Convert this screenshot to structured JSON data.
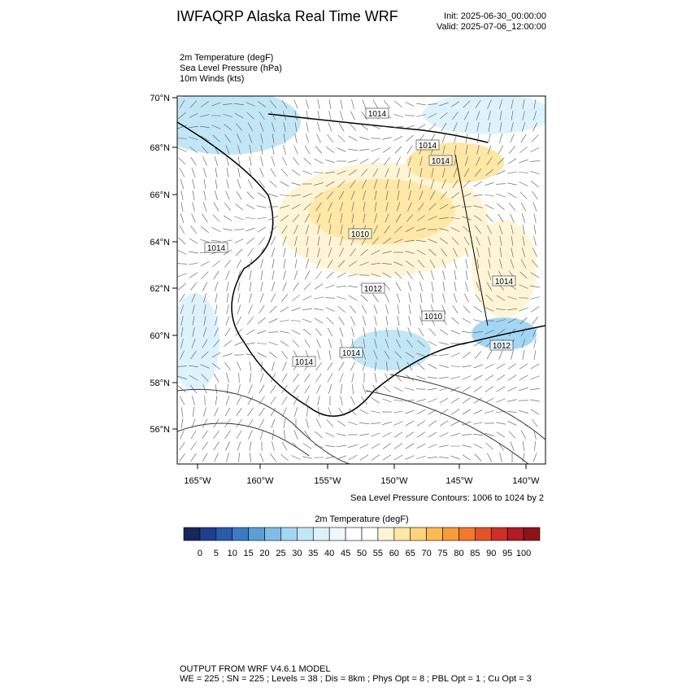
{
  "header": {
    "title": "IWFAQRP Alaska Real Time WRF",
    "init": "Init: 2025-06-30_00:00:00",
    "valid": "Valid: 2025-07-06_12:00:00"
  },
  "fields": [
    "2m Temperature   (degF)",
    "Sea Level Pressure   (hPa)",
    "10m Winds   (kts)"
  ],
  "map": {
    "lat_ticks": [
      "70°N",
      "68°N",
      "66°N",
      "64°N",
      "62°N",
      "60°N",
      "58°N",
      "56°N"
    ],
    "lon_ticks": [
      "165°W",
      "160°W",
      "155°W",
      "150°W",
      "145°W",
      "140°W"
    ],
    "contour_labels": [
      "1014",
      "1014",
      "1014",
      "1010",
      "1014",
      "1012",
      "1010",
      "1014",
      "1014",
      "1014",
      "1012"
    ],
    "contour_note": "Sea Level Pressure Contours: 1006 to 1024 by 2"
  },
  "colorbar": {
    "title": "2m Temperature  (degF)",
    "colors": [
      "#16275e",
      "#1f3f8e",
      "#2a5aac",
      "#3c7bc4",
      "#5c9fd7",
      "#7fbde8",
      "#a3d6f3",
      "#c3e6f7",
      "#def2fb",
      "#eef8fd",
      "#ffffff",
      "#ffffff",
      "#fff5d6",
      "#ffe7a6",
      "#fed27c",
      "#fdb954",
      "#f99a3a",
      "#f17a2e",
      "#e35327",
      "#cf2f26",
      "#b11b22",
      "#8b1419"
    ],
    "labels": [
      0,
      5,
      10,
      15,
      20,
      25,
      30,
      35,
      40,
      45,
      50,
      55,
      60,
      65,
      70,
      75,
      80,
      85,
      90,
      95,
      100
    ]
  },
  "footer": [
    "OUTPUT FROM WRF V4.6.1 MODEL",
    "WE = 225 ; SN = 225 ; Levels = 38 ; Dis = 8km ; Phys Opt = 8 ; PBL Opt = 1 ; Cu Opt = 3"
  ]
}
